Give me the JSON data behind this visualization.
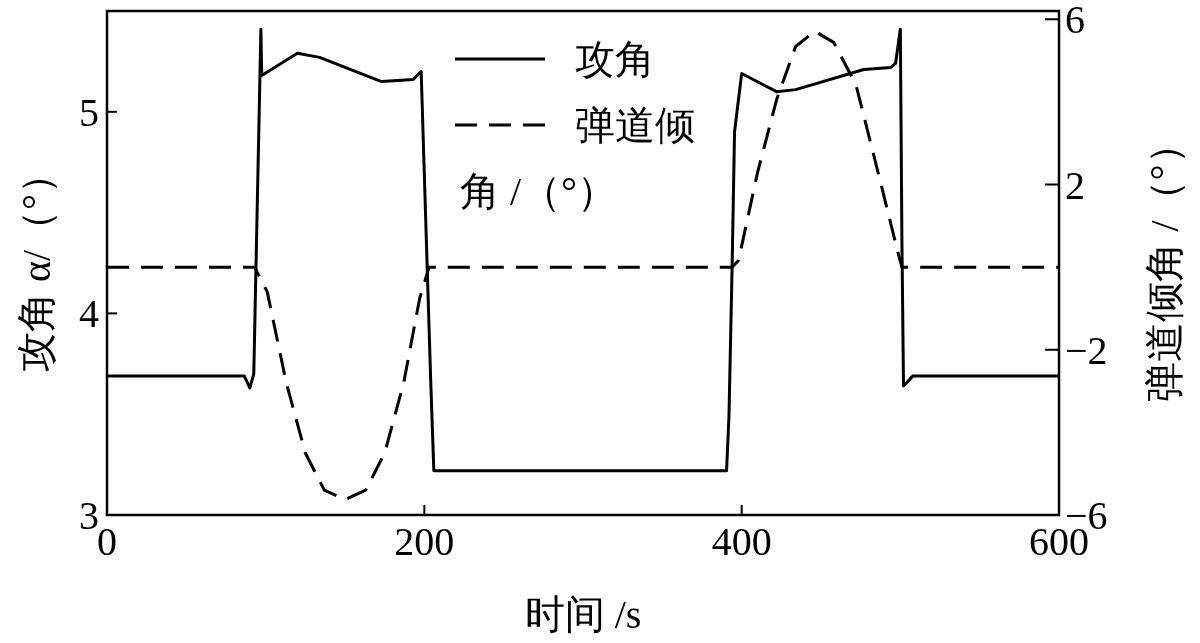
{
  "chart_data": {
    "type": "line",
    "xlabel": "时间 /s",
    "ylabel": "攻角 α/（°）",
    "y2label": "弹道倾角 /（°）",
    "xlim": [
      0,
      600
    ],
    "xticks": [
      0,
      200,
      400,
      600
    ],
    "ylim": [
      3,
      5.5
    ],
    "yticks": [
      3,
      4,
      5
    ],
    "y2lim": [
      -6,
      6.2
    ],
    "y2ticks": [
      -6,
      -2,
      2,
      6
    ],
    "legend": "top",
    "grid": false,
    "series": [
      {
        "name": "攻角",
        "color": "#000000",
        "line_style": "solid",
        "x": [
          0,
          86.5,
          90,
          92.5,
          97,
          97.5,
          120,
          134,
          173,
          193,
          198,
          200.5,
          204,
          206,
          390.5,
          392,
          394,
          395.5,
          400,
          422,
          434,
          477,
          494,
          497,
          500,
          501,
          502,
          508,
          600
        ],
        "values": [
          3.69,
          3.69,
          3.63,
          3.7,
          5.41,
          5.18,
          5.29,
          5.27,
          5.15,
          5.16,
          5.2,
          4.56,
          3.67,
          3.22,
          3.22,
          3.49,
          4.24,
          4.9,
          5.19,
          5.1,
          5.11,
          5.21,
          5.22,
          5.24,
          5.41,
          4.36,
          3.64,
          3.69,
          3.69
        ]
      },
      {
        "name": "弹道倾角 /（°）",
        "color": "#000000",
        "line_style": "dashed",
        "axis": "y2",
        "x": [
          0,
          93,
          101,
          113,
          125,
          137,
          150,
          163,
          175,
          187,
          197,
          203,
          394,
          398,
          410,
          422,
          434,
          446,
          458,
          472,
          486,
          498,
          501,
          600
        ],
        "values": [
          0,
          0,
          -0.6,
          -2.8,
          -4.5,
          -5.4,
          -5.63,
          -5.4,
          -4.5,
          -2.8,
          -0.77,
          0,
          0,
          0.16,
          2.29,
          4.05,
          5.34,
          5.71,
          5.44,
          4.42,
          2.29,
          0.43,
          0,
          0
        ]
      }
    ]
  }
}
